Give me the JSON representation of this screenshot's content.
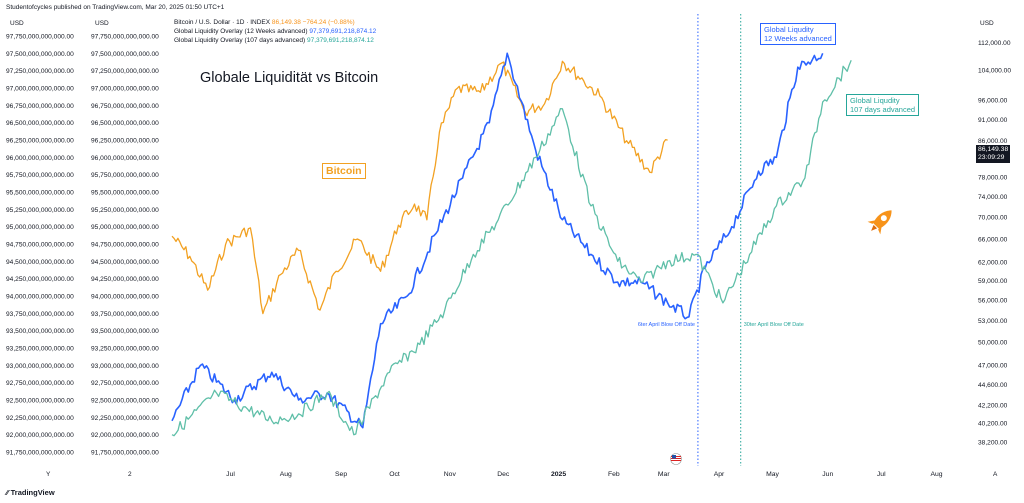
{
  "header": {
    "published": "Studentofcycles published on TradingView.com, Mar 20, 2025 01:50 UTC+1"
  },
  "axis_units": {
    "left1": "USD",
    "left2": "USD",
    "right": "USD"
  },
  "legend": [
    {
      "label": "Bitcoin / U.S. Dollar · 1D · INDEX",
      "value": "86,149.38  −764.24 (−0.88%)"
    },
    {
      "label": "Global Liquidity Overlay (12 Weeks advanced)",
      "value": "97,379,691,218,874.12"
    },
    {
      "label": "Global Liquidity Overlay (107 days advanced)",
      "value": "97,379,691,218,874.12"
    }
  ],
  "chart_title": "Globale Liquidität vs Bitcoin",
  "annotations": {
    "bitcoin": "Bitcoin",
    "gl12_line1": "Global Liqudity",
    "gl12_line2": "12 Weeks advanced",
    "gl107_line1": "Global Liqudity",
    "gl107_line2": "107 days advanced",
    "blowoff1": "6ter April Blow Off Date",
    "blowoff2": "30ter April Blow Off Date"
  },
  "price_tag": {
    "price": "86,149.38",
    "countdown": "23:09:29"
  },
  "footer": {
    "brand": "TradingView"
  },
  "bottom_axis_markers": [
    "Y",
    "2",
    "A"
  ],
  "colors": {
    "bitcoin": "#f2a122",
    "gl12": "#2962ff",
    "gl107": "#5fbfa8",
    "blowoff1": "#2962ff",
    "blowoff2": "#26a69a"
  },
  "chart_data": {
    "type": "line",
    "title": "Globale Liquidität vs Bitcoin",
    "x_ticks": [
      "Jul",
      "Aug",
      "Sep",
      "Oct",
      "Nov",
      "Dec",
      "2025",
      "Feb",
      "Mar",
      "Apr",
      "May",
      "Jun",
      "Jul",
      "Aug"
    ],
    "x_range_months": [
      "2024-06-15",
      "2025-08-31"
    ],
    "left_axis_ticks": [
      "97,750,000,000,000.00",
      "97,500,000,000,000.00",
      "97,250,000,000,000.00",
      "97,000,000,000,000.00",
      "96,750,000,000,000.00",
      "96,500,000,000,000.00",
      "96,250,000,000,000.00",
      "96,000,000,000,000.00",
      "95,750,000,000,000.00",
      "95,500,000,000,000.00",
      "95,250,000,000,000.00",
      "95,000,000,000,000.00",
      "94,750,000,000,000.00",
      "94,500,000,000,000.00",
      "94,250,000,000,000.00",
      "94,000,000,000,000.00",
      "93,750,000,000,000.00",
      "93,500,000,000,000.00",
      "93,250,000,000,000.00",
      "93,000,000,000,000.00",
      "92,750,000,000,000.00",
      "92,500,000,000,000.00",
      "92,250,000,000,000.00",
      "92,000,000,000,000.00",
      "91,750,000,000,000.00"
    ],
    "right_axis_ticks": [
      "112,000.00",
      "104,000.00",
      "96,000.00",
      "91,000.00",
      "86,000.00",
      "82,000.00",
      "78,000.00",
      "74,000.00",
      "70,000.00",
      "66,000.00",
      "62,000.00",
      "59,000.00",
      "56,000.00",
      "53,000.00",
      "50,000.00",
      "47,000.00",
      "44,600.00",
      "42,200.00",
      "40,200.00",
      "38,200.00"
    ],
    "right_axis_log_scale": true,
    "series": [
      {
        "name": "Bitcoin / U.S. Dollar",
        "axis": "right",
        "x": [
          "2024-06-15",
          "2024-06-25",
          "2024-07-05",
          "2024-07-15",
          "2024-07-29",
          "2024-08-05",
          "2024-08-15",
          "2024-08-25",
          "2024-09-06",
          "2024-09-15",
          "2024-09-27",
          "2024-10-10",
          "2024-10-20",
          "2024-10-29",
          "2024-11-05",
          "2024-11-12",
          "2024-11-22",
          "2024-12-05",
          "2024-12-17",
          "2024-12-30",
          "2025-01-10",
          "2025-01-20",
          "2025-02-01",
          "2025-02-10",
          "2025-02-25",
          "2025-03-10",
          "2025-03-20"
        ],
        "values": [
          66500,
          63000,
          57500,
          65000,
          68000,
          54000,
          60000,
          64000,
          54500,
          60500,
          66000,
          60500,
          68500,
          72500,
          69500,
          88000,
          99000,
          98000,
          106000,
          93000,
          95000,
          106500,
          101000,
          97000,
          86000,
          79000,
          86149
        ]
      },
      {
        "name": "Global Liquidity Overlay (12 Weeks advanced)",
        "axis": "left",
        "x": [
          "2024-06-15",
          "2024-07-01",
          "2024-07-20",
          "2024-08-10",
          "2024-08-25",
          "2024-09-10",
          "2024-09-30",
          "2024-10-10",
          "2024-10-25",
          "2024-11-10",
          "2024-11-25",
          "2024-12-10",
          "2024-12-20",
          "2025-01-05",
          "2025-01-20",
          "2025-02-05",
          "2025-02-20",
          "2025-03-05",
          "2025-03-20",
          "2025-04-01",
          "2025-04-10",
          "2025-04-25",
          "2025-05-10",
          "2025-05-20",
          "2025-06-01",
          "2025-06-15"
        ],
        "values": [
          92200000000000.0,
          93000000000000.0,
          92500000000000.0,
          92900000000000.0,
          92500000000000.0,
          92600000000000.0,
          92100000000000.0,
          93600000000000.0,
          94000000000000.0,
          94900000000000.0,
          95700000000000.0,
          96500000000000.0,
          97500000000000.0,
          96100000000000.0,
          95100000000000.0,
          94600000000000.0,
          94200000000000.0,
          94200000000000.0,
          93900000000000.0,
          93700000000000.0,
          94400000000000.0,
          95000000000000.0,
          95800000000000.0,
          96000000000000.0,
          97300000000000.0,
          97500000000000.0
        ]
      },
      {
        "name": "Global Liquidity Overlay (107 days advanced)",
        "axis": "left",
        "x": [
          "2024-06-15",
          "2024-07-10",
          "2024-07-25",
          "2024-08-10",
          "2024-08-25",
          "2024-09-10",
          "2024-09-25",
          "2024-10-15",
          "2024-11-01",
          "2024-11-15",
          "2024-12-01",
          "2024-12-15",
          "2025-01-05",
          "2025-01-20",
          "2025-02-05",
          "2025-02-20",
          "2025-03-05",
          "2025-03-20",
          "2025-04-05",
          "2025-04-20",
          "2025-05-05",
          "2025-05-20",
          "2025-06-05",
          "2025-06-15",
          "2025-07-01"
        ],
        "values": [
          92000000000000.0,
          92600000000000.0,
          92400000000000.0,
          92200000000000.0,
          92300000000000.0,
          92600000000000.0,
          92000000000000.0,
          92900000000000.0,
          93300000000000.0,
          93800000000000.0,
          94600000000000.0,
          95100000000000.0,
          96000000000000.0,
          96700000000000.0,
          95300000000000.0,
          94500000000000.0,
          94200000000000.0,
          94500000000000.0,
          94600000000000.0,
          93900000000000.0,
          94600000000000.0,
          95300000000000.0,
          95700000000000.0,
          96800000000000.0,
          97400000000000.0
        ]
      }
    ],
    "vertical_markers": [
      {
        "label": "6ter April Blow Off Date",
        "x": "2025-04-06"
      },
      {
        "label": "30ter April Blow Off Date",
        "x": "2025-04-30"
      }
    ],
    "grid": false,
    "legend_position": "top-left"
  }
}
